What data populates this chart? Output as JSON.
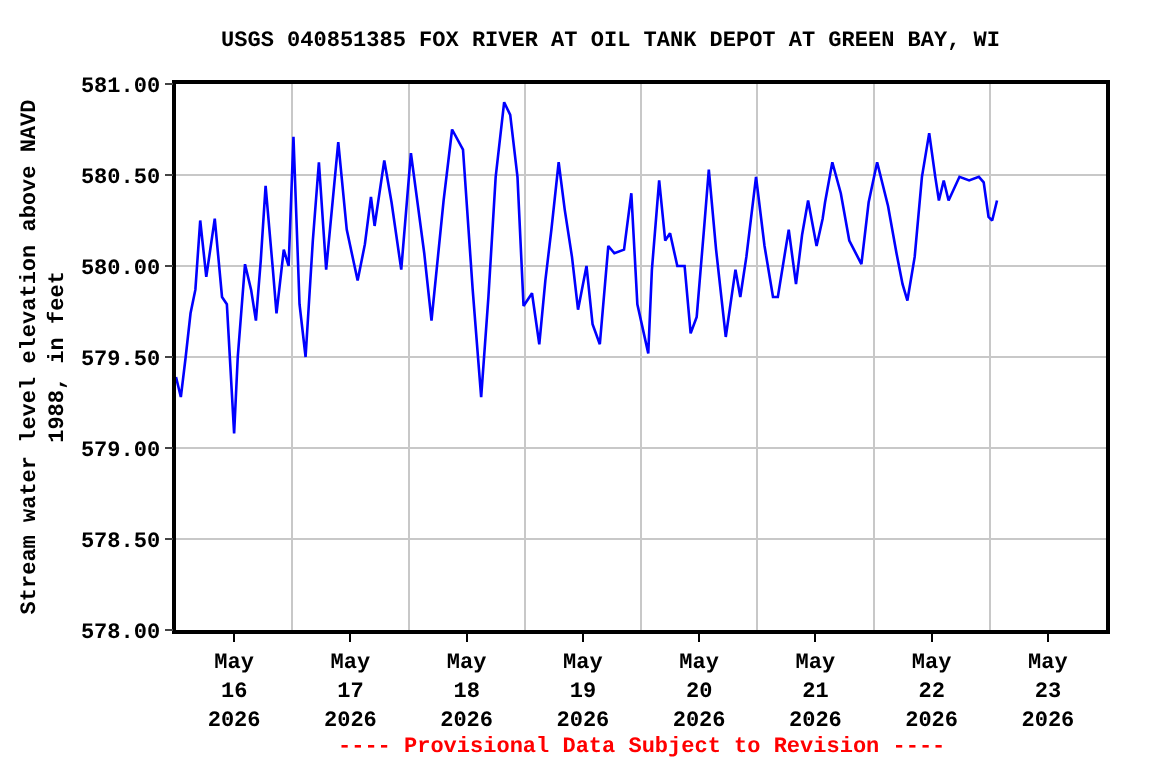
{
  "chart_data": {
    "type": "line",
    "title": "USGS 040851385 FOX RIVER AT OIL TANK DEPOT AT GREEN BAY, WI",
    "ylabel": "Stream water level elevation above NAVD\n1988, in feet",
    "annotations": [
      "---- Provisional Data Subject to Revision ----"
    ],
    "x": [
      "2026-05-16T00:00",
      "2026-05-16T01:00",
      "2026-05-16T02:00",
      "2026-05-16T03:00",
      "2026-05-16T04:00",
      "2026-05-16T05:00",
      "2026-05-16T06:15",
      "2026-05-16T08:00",
      "2026-05-16T09:30",
      "2026-05-16T10:30",
      "2026-05-16T12:00",
      "2026-05-16T12:45",
      "2026-05-16T14:15",
      "2026-05-16T15:30",
      "2026-05-16T16:30",
      "2026-05-16T17:30",
      "2026-05-16T18:30",
      "2026-05-16T20:00",
      "2026-05-16T20:45",
      "2026-05-16T22:15",
      "2026-05-16T23:15",
      "2026-05-17T00:15",
      "2026-05-17T01:30",
      "2026-05-17T02:45",
      "2026-05-17T04:15",
      "2026-05-17T05:30",
      "2026-05-17T07:00",
      "2026-05-17T09:30",
      "2026-05-17T11:15",
      "2026-05-17T13:30",
      "2026-05-17T15:00",
      "2026-05-17T16:15",
      "2026-05-17T17:00",
      "2026-05-17T19:00",
      "2026-05-17T20:30",
      "2026-05-17T22:30",
      "2026-05-18T00:30",
      "2026-05-18T03:15",
      "2026-05-18T04:45",
      "2026-05-18T07:15",
      "2026-05-18T09:00",
      "2026-05-18T11:15",
      "2026-05-18T13:15",
      "2026-05-18T15:00",
      "2026-05-18T16:30",
      "2026-05-18T18:00",
      "2026-05-18T19:45",
      "2026-05-18T21:00",
      "2026-05-18T22:30",
      "2026-05-18T23:45",
      "2026-05-19T01:30",
      "2026-05-19T03:00",
      "2026-05-19T04:15",
      "2026-05-19T05:30",
      "2026-05-19T07:00",
      "2026-05-19T08:15",
      "2026-05-19T09:45",
      "2026-05-19T11:00",
      "2026-05-19T12:45",
      "2026-05-19T14:00",
      "2026-05-19T15:30",
      "2026-05-19T17:15",
      "2026-05-19T18:30",
      "2026-05-19T20:30",
      "2026-05-19T22:00",
      "2026-05-19T23:15",
      "2026-05-20T01:30",
      "2026-05-20T02:15",
      "2026-05-20T03:45",
      "2026-05-20T05:00",
      "2026-05-20T06:00",
      "2026-05-20T07:30",
      "2026-05-20T09:00",
      "2026-05-20T10:15",
      "2026-05-20T11:30",
      "2026-05-20T13:00",
      "2026-05-20T14:00",
      "2026-05-20T15:30",
      "2026-05-20T17:30",
      "2026-05-20T19:30",
      "2026-05-20T20:30",
      "2026-05-20T21:45",
      "2026-05-20T23:45",
      "2026-05-21T01:30",
      "2026-05-21T03:15",
      "2026-05-21T04:15",
      "2026-05-21T06:30",
      "2026-05-21T08:00",
      "2026-05-21T09:15",
      "2026-05-21T10:30",
      "2026-05-21T12:15",
      "2026-05-21T13:30",
      "2026-05-21T14:00",
      "2026-05-21T15:30",
      "2026-05-21T17:15",
      "2026-05-21T19:00",
      "2026-05-21T21:30",
      "2026-05-21T23:00",
      "2026-05-22T00:45",
      "2026-05-22T03:00",
      "2026-05-22T04:45",
      "2026-05-22T06:00",
      "2026-05-22T07:00",
      "2026-05-22T08:30",
      "2026-05-22T10:00",
      "2026-05-22T11:30",
      "2026-05-22T12:45",
      "2026-05-22T13:30",
      "2026-05-22T14:30",
      "2026-05-22T15:30",
      "2026-05-22T17:45",
      "2026-05-22T19:45",
      "2026-05-22T21:45",
      "2026-05-22T22:45",
      "2026-05-22T23:45",
      "2026-05-23T00:30",
      "2026-05-23T01:30"
    ],
    "series": [
      {
        "color": "#0000ff",
        "values": [
          579.39,
          579.28,
          579.5,
          579.74,
          579.87,
          580.25,
          579.94,
          580.26,
          579.83,
          579.79,
          579.08,
          579.5,
          580.01,
          579.87,
          579.7,
          580.03,
          580.44,
          579.98,
          579.74,
          580.09,
          580.0,
          580.71,
          579.79,
          579.5,
          580.14,
          580.57,
          579.98,
          580.68,
          580.2,
          579.92,
          580.12,
          580.38,
          580.22,
          580.58,
          580.35,
          579.98,
          580.62,
          580.07,
          579.7,
          580.36,
          580.75,
          580.64,
          579.87,
          579.28,
          579.83,
          580.49,
          580.9,
          580.83,
          580.49,
          579.78,
          579.85,
          579.57,
          579.92,
          580.2,
          580.57,
          580.31,
          580.05,
          579.76,
          580.0,
          579.68,
          579.57,
          580.11,
          580.07,
          580.09,
          580.4,
          579.79,
          579.52,
          579.98,
          580.47,
          580.14,
          580.18,
          580.0,
          580.0,
          579.63,
          579.72,
          580.2,
          580.53,
          580.09,
          579.61,
          579.98,
          579.83,
          580.05,
          580.49,
          580.11,
          579.83,
          579.83,
          580.2,
          579.9,
          580.17,
          580.36,
          580.11,
          580.26,
          580.35,
          580.57,
          580.4,
          580.14,
          580.01,
          580.35,
          580.57,
          580.33,
          580.07,
          579.9,
          579.81,
          580.05,
          580.49,
          580.73,
          580.49,
          580.36,
          580.47,
          580.36,
          580.49,
          580.47,
          580.49,
          580.46,
          580.27,
          580.25,
          580.36
        ]
      }
    ],
    "xlim": [
      "2026-05-16T00:00",
      "2026-05-24T00:00"
    ],
    "xticks": [
      {
        "value": "2026-05-16T12:00",
        "label": "May\n16\n2026"
      },
      {
        "value": "2026-05-17T12:00",
        "label": "May\n17\n2026"
      },
      {
        "value": "2026-05-18T12:00",
        "label": "May\n18\n2026"
      },
      {
        "value": "2026-05-19T12:00",
        "label": "May\n19\n2026"
      },
      {
        "value": "2026-05-20T12:00",
        "label": "May\n20\n2026"
      },
      {
        "value": "2026-05-21T12:00",
        "label": "May\n21\n2026"
      },
      {
        "value": "2026-05-22T12:00",
        "label": "May\n22\n2026"
      },
      {
        "value": "2026-05-23T12:00",
        "label": "May\n23\n2026"
      },
      {
        "value": "2026-05-17T00:00",
        "label": null
      },
      {
        "value": "2026-05-18T00:00",
        "label": null
      },
      {
        "value": "2026-05-19T00:00",
        "label": null
      },
      {
        "value": "2026-05-20T00:00",
        "label": null
      },
      {
        "value": "2026-05-21T00:00",
        "label": null
      },
      {
        "value": "2026-05-22T00:00",
        "label": null
      },
      {
        "value": "2026-05-23T00:00",
        "label": null
      }
    ],
    "ylim": [
      578,
      581
    ],
    "yticks": [
      {
        "value": 578,
        "label": "578.00"
      },
      {
        "value": 578.5,
        "label": "578.50"
      },
      {
        "value": 579,
        "label": "579.00"
      },
      {
        "value": 579.5,
        "label": "579.50"
      },
      {
        "value": 580,
        "label": "580.00"
      },
      {
        "value": 580.5,
        "label": "580.50"
      },
      {
        "value": 581,
        "label": "581.00"
      }
    ],
    "grid": true,
    "marker": "none",
    "line_style": "solid"
  }
}
